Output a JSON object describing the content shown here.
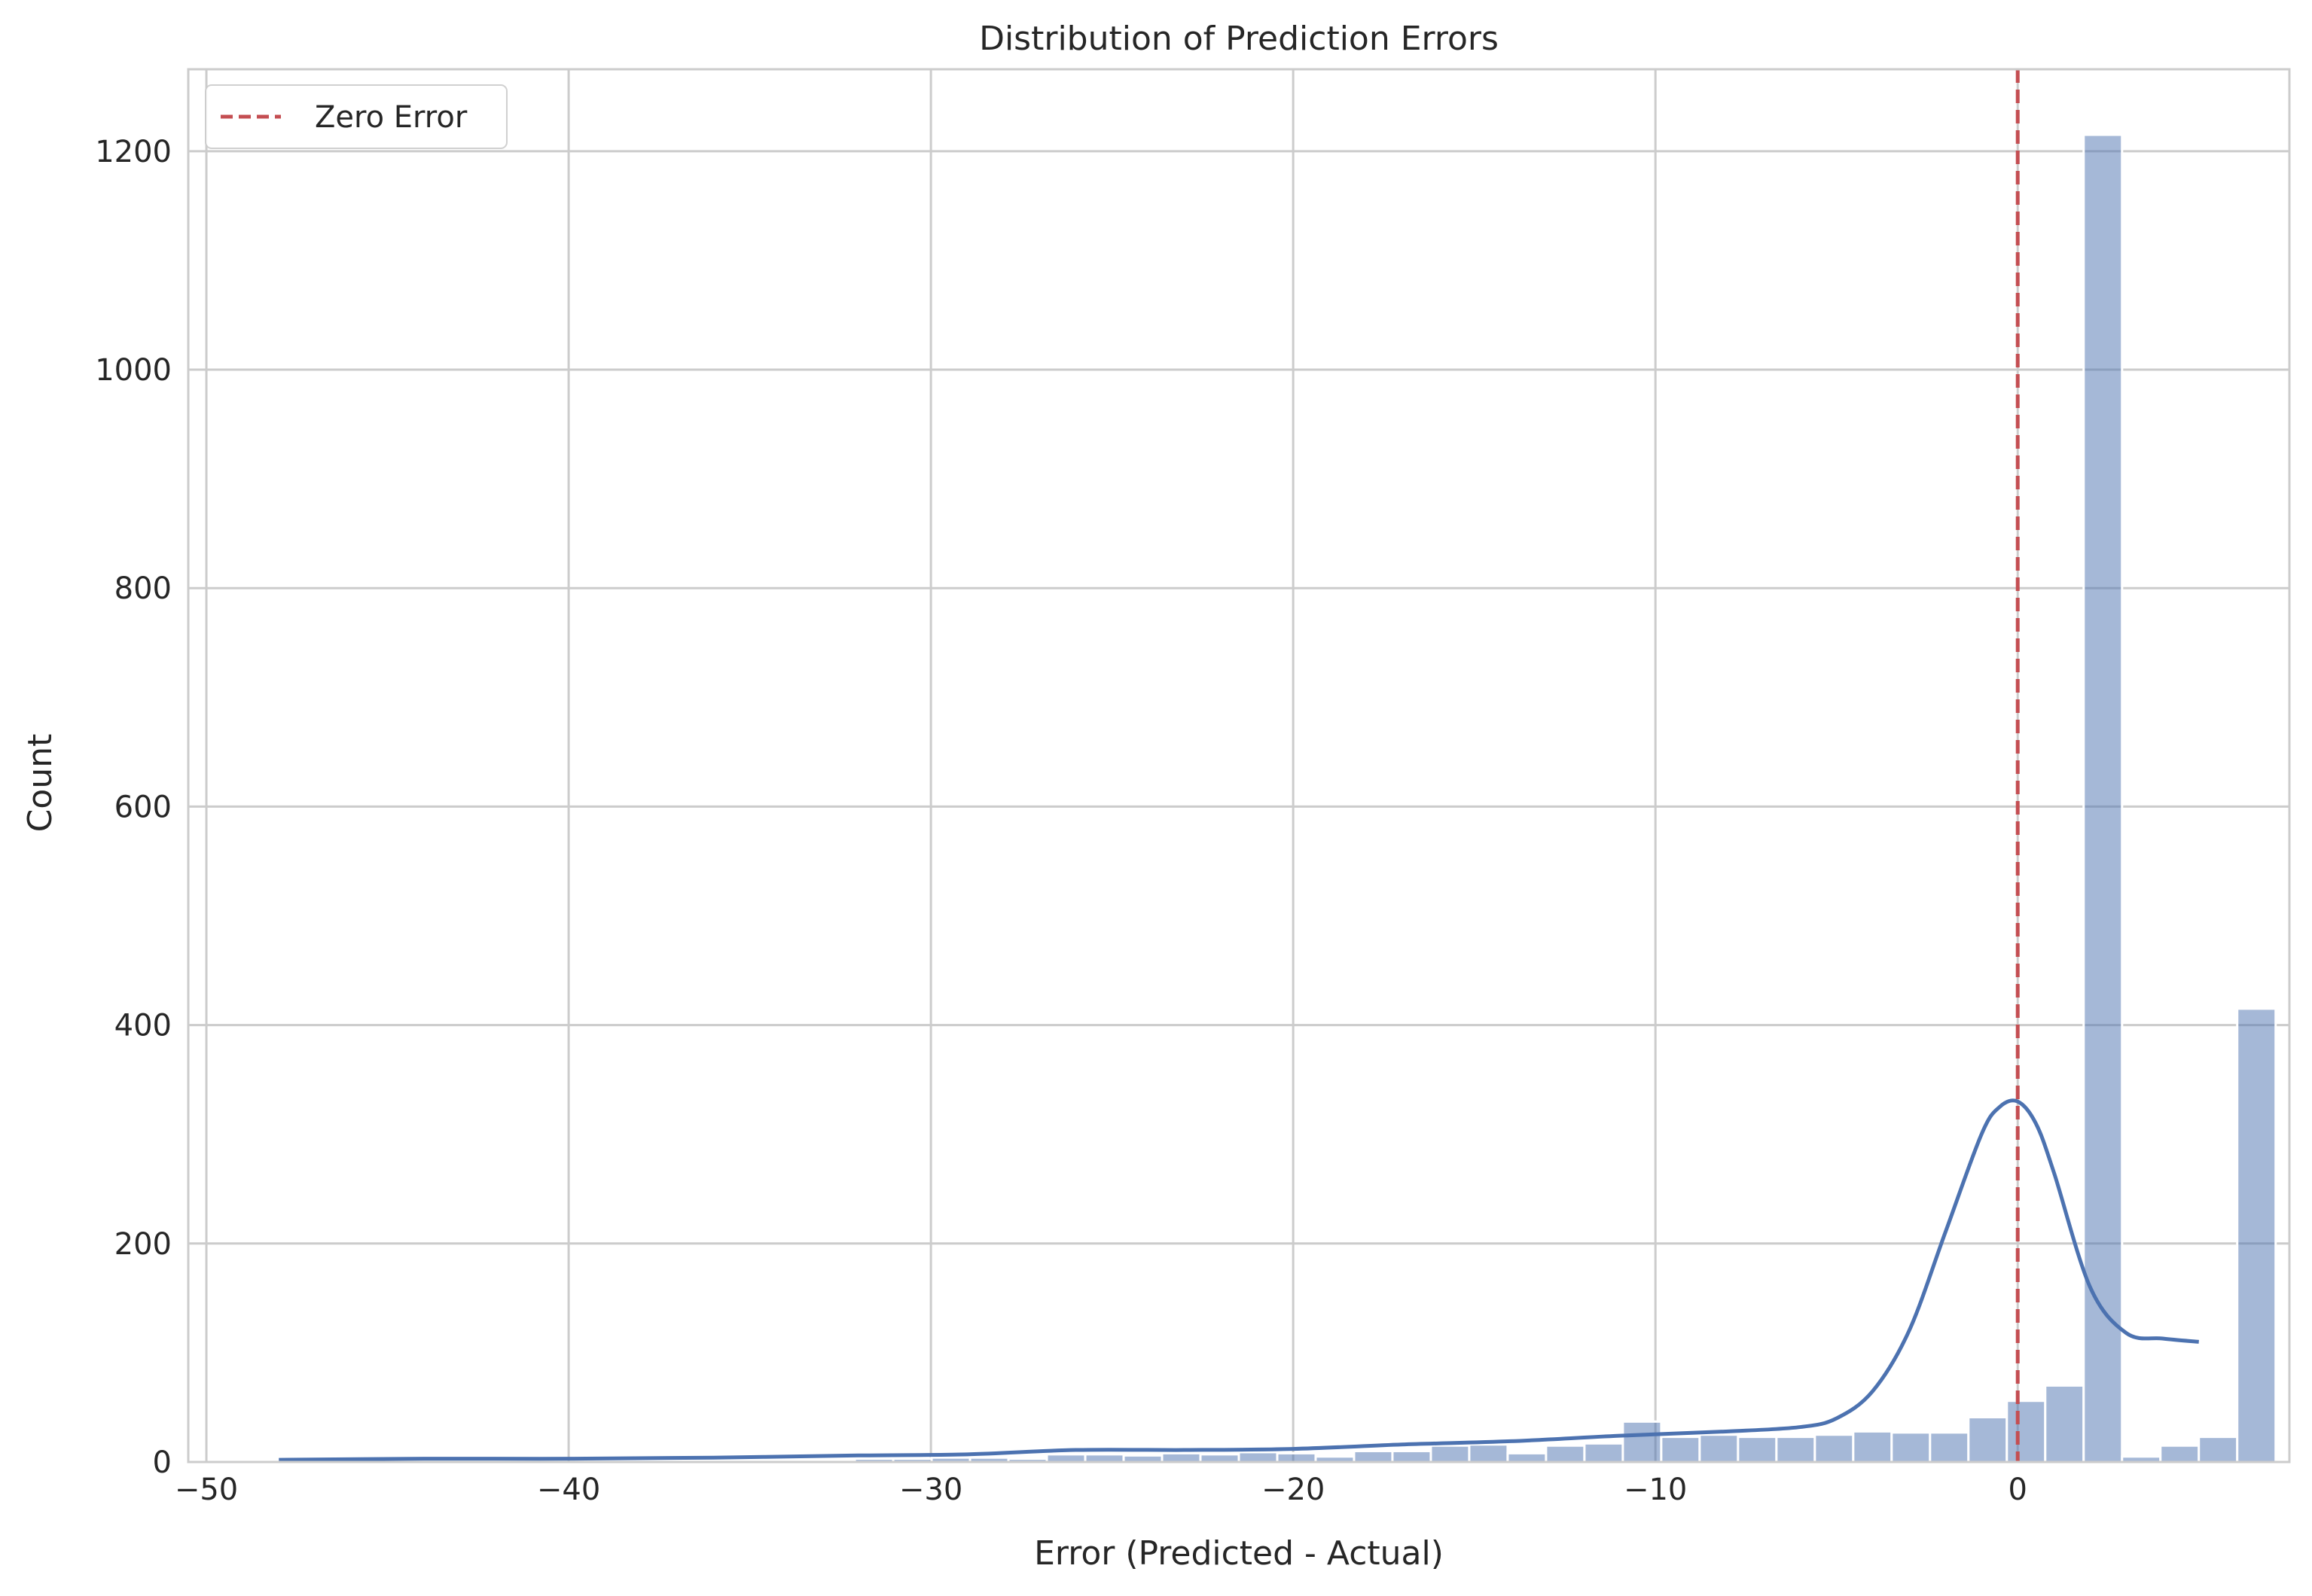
{
  "chart_data": {
    "type": "bar",
    "title": "Distribution of Prediction Errors",
    "xlabel": "Error (Predicted - Actual)",
    "ylabel": "Count",
    "xlim": [
      -50.5,
      7.5
    ],
    "ylim": [
      0,
      1275
    ],
    "xticks": [
      -50,
      -40,
      -30,
      -20,
      -10,
      0
    ],
    "xtick_labels": [
      "−50",
      "−40",
      "−30",
      "−20",
      "−10",
      "0"
    ],
    "yticks": [
      0,
      200,
      400,
      600,
      800,
      1000,
      1200
    ],
    "ytick_labels": [
      "0",
      "200",
      "400",
      "600",
      "800",
      "1000",
      "1200"
    ],
    "grid": true,
    "legend_position": "top-left",
    "colors": {
      "bar": "#4c72b0",
      "kde": "#4c72b0",
      "zero_line": "#c44e52",
      "grid": "#cccccc",
      "spine": "#cccccc",
      "background": "#ffffff"
    },
    "bins": {
      "edges_start": -48.0,
      "bin_width": 1.06,
      "counts": [
        1,
        0,
        0,
        0,
        1,
        0,
        0,
        0,
        1,
        0,
        0,
        0,
        1,
        2,
        2,
        3,
        3,
        4,
        4,
        3,
        7,
        7,
        6,
        8,
        7,
        9,
        8,
        5,
        10,
        10,
        15,
        16,
        8,
        15,
        17,
        37,
        23,
        25,
        23,
        23,
        25,
        28,
        27,
        27,
        41,
        56,
        70,
        1215,
        5,
        15,
        23,
        415
      ]
    },
    "kde": {
      "x": [
        -48,
        -44,
        -40,
        -36,
        -32,
        -29,
        -26,
        -23,
        -20,
        -17,
        -14,
        -11,
        -8,
        -6,
        -5,
        -4,
        -3,
        -2,
        -1,
        -0.5,
        0,
        0.5,
        1,
        2,
        3,
        4,
        5
      ],
      "y": [
        2,
        3,
        3,
        4,
        6,
        7,
        11,
        11,
        12,
        16,
        19,
        24,
        28,
        32,
        40,
        65,
        120,
        210,
        300,
        325,
        330,
        310,
        265,
        160,
        118,
        113,
        110
      ]
    },
    "vline": {
      "x": 0,
      "label": "Zero Error"
    }
  }
}
